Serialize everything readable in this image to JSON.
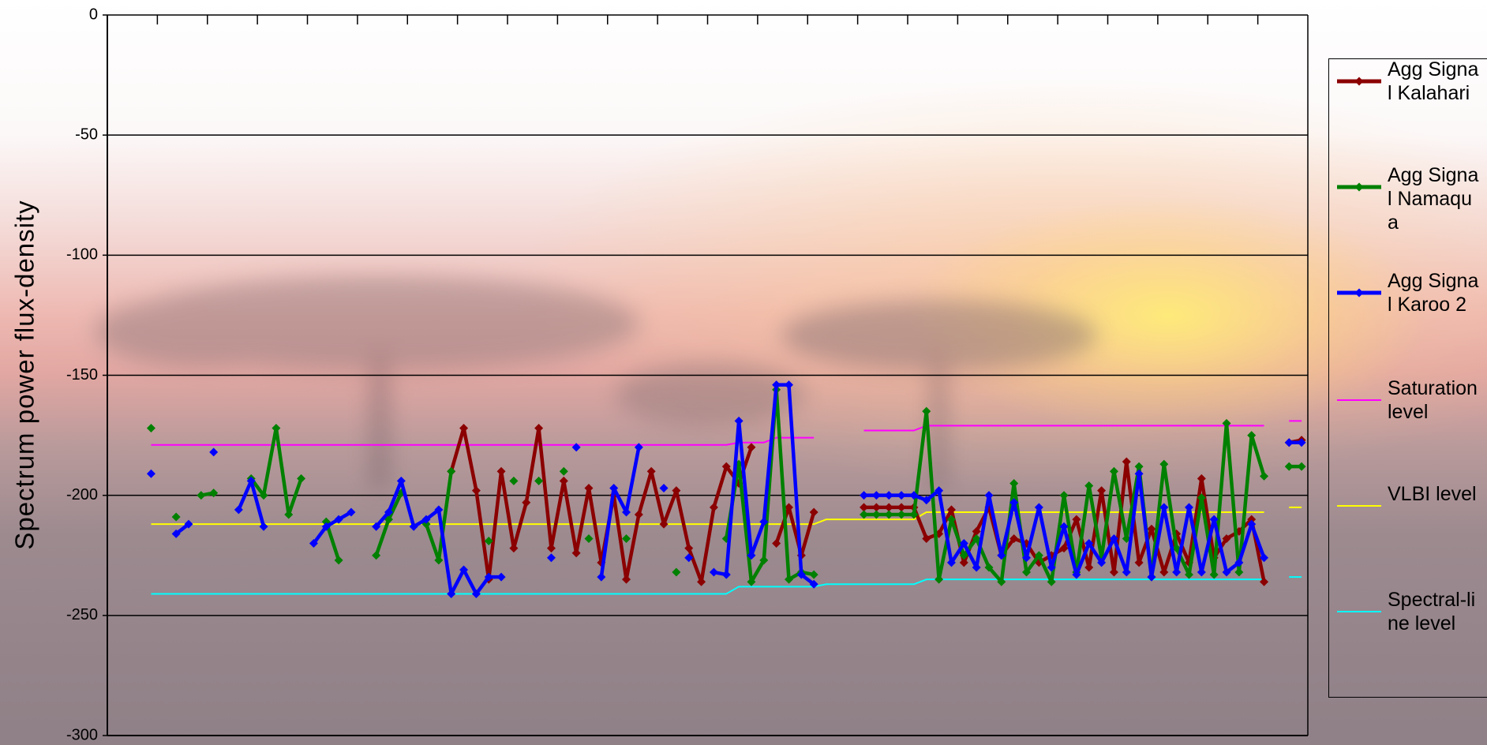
{
  "chart_data": {
    "type": "line",
    "y_label": "Spectrum power flux-density",
    "ylim": [
      -300,
      0
    ],
    "yticks": [
      0,
      -50,
      -100,
      -150,
      -200,
      -250,
      -300
    ],
    "grid": true,
    "legend": "right",
    "categories": [
      null,
      null,
      null,
      null,
      null,
      null,
      null,
      null,
      null,
      null,
      null,
      null,
      null,
      null,
      null,
      null,
      null,
      null,
      null,
      null,
      null,
      null,
      null,
      null,
      null,
      null,
      null,
      null,
      null,
      null,
      null,
      null,
      null,
      null,
      null,
      null,
      null,
      null,
      null,
      null,
      null,
      null,
      null,
      null,
      null,
      null,
      null,
      null,
      null,
      null,
      null,
      null,
      null,
      null,
      null,
      null,
      null,
      null,
      null,
      null,
      null,
      null,
      null,
      null,
      null,
      null,
      null,
      null,
      null,
      null,
      null,
      null,
      null,
      null,
      null,
      null,
      null,
      null,
      null,
      null,
      null,
      null,
      null,
      null,
      null,
      null,
      null,
      null,
      null,
      null,
      null,
      null,
      null,
      null,
      null,
      null
    ],
    "series": [
      {
        "name": "Agg Signal Kalahari",
        "color": "#8b0000",
        "marker": "diamond",
        "values": [
          null,
          null,
          null,
          null,
          null,
          null,
          null,
          null,
          null,
          null,
          null,
          null,
          null,
          null,
          null,
          null,
          null,
          null,
          null,
          null,
          null,
          null,
          null,
          null,
          null,
          null,
          null,
          -190,
          -172,
          -198,
          -235,
          -190,
          -222,
          -203,
          -172,
          -222,
          -194,
          -224,
          -197,
          -228,
          -200,
          -235,
          -208,
          -190,
          -212,
          -198,
          -222,
          -236,
          -205,
          -188,
          -195,
          -180,
          null,
          -220,
          -205,
          -225,
          -207,
          null,
          null,
          null,
          -205,
          -205,
          -205,
          -205,
          -205,
          -218,
          -216,
          -206,
          -228,
          -215,
          -205,
          -225,
          -218,
          -220,
          -228,
          -225,
          -222,
          -210,
          -230,
          -198,
          -232,
          -186,
          -228,
          -214,
          -232,
          -216,
          -228,
          -193,
          -226,
          -218,
          -215,
          -210,
          -236,
          null,
          -178,
          -177
        ]
      },
      {
        "name": "Agg Signal Namaqua",
        "color": "#008000",
        "marker": "diamond",
        "values": [
          null,
          null,
          null,
          -172,
          null,
          -209,
          null,
          -200,
          -199,
          null,
          null,
          -193,
          -200,
          -172,
          -208,
          -193,
          null,
          -211,
          -227,
          null,
          null,
          -225,
          -210,
          -199,
          null,
          -212,
          -227,
          -190,
          null,
          null,
          -219,
          null,
          -194,
          null,
          -194,
          null,
          -190,
          null,
          -218,
          null,
          null,
          -218,
          null,
          null,
          null,
          -232,
          null,
          null,
          null,
          -218,
          -187,
          -236,
          -227,
          -156,
          -235,
          -232,
          -233,
          null,
          null,
          null,
          -208,
          -208,
          -208,
          -208,
          -208,
          -165,
          -235,
          -210,
          -225,
          -218,
          -230,
          -236,
          -195,
          -232,
          -225,
          -236,
          -200,
          -232,
          -196,
          -226,
          -190,
          -218,
          -188,
          -234,
          -187,
          -222,
          -233,
          -201,
          -233,
          -170,
          -232,
          -175,
          -192,
          null,
          -188,
          -188
        ]
      },
      {
        "name": "Agg Signal Karoo 2",
        "color": "#0000ff",
        "marker": "diamond",
        "values": [
          null,
          null,
          null,
          -191,
          null,
          -216,
          -212,
          null,
          -182,
          null,
          -206,
          -194,
          -213,
          null,
          null,
          null,
          -220,
          -213,
          -210,
          -207,
          null,
          -213,
          -207,
          -194,
          -213,
          -210,
          -206,
          -241,
          -231,
          -241,
          -234,
          -234,
          null,
          null,
          null,
          -226,
          null,
          -180,
          null,
          -234,
          -197,
          -207,
          -180,
          null,
          -197,
          null,
          -226,
          null,
          -232,
          -233,
          -169,
          -225,
          -211,
          -154,
          -154,
          -233,
          -237,
          null,
          null,
          null,
          -200,
          -200,
          -200,
          -200,
          -200,
          -202,
          -198,
          -228,
          -220,
          -230,
          -200,
          -225,
          -203,
          -226,
          -205,
          -230,
          -213,
          -233,
          -220,
          -228,
          -218,
          -232,
          -191,
          -234,
          -205,
          -232,
          -205,
          -232,
          -210,
          -232,
          -228,
          -212,
          -226,
          null,
          -178,
          -178
        ]
      },
      {
        "name": "Saturation level",
        "color": "#ff00ff",
        "values": [
          null,
          null,
          null,
          -179,
          -179,
          -179,
          -179,
          -179,
          -179,
          -179,
          -179,
          -179,
          -179,
          -179,
          -179,
          -179,
          -179,
          -179,
          -179,
          -179,
          -179,
          -179,
          -179,
          -179,
          -179,
          -179,
          -179,
          -179,
          -179,
          -179,
          -179,
          -179,
          -179,
          -179,
          -179,
          -179,
          -179,
          -179,
          -179,
          -179,
          -179,
          -179,
          -179,
          -179,
          -179,
          -179,
          -179,
          -179,
          -179,
          -179,
          -178,
          -178,
          -178,
          -176,
          -176,
          -176,
          -176,
          null,
          null,
          null,
          -173,
          -173,
          -173,
          -173,
          -173,
          -171,
          -171,
          -171,
          -171,
          -171,
          -171,
          -171,
          -171,
          -171,
          -171,
          -171,
          -171,
          -171,
          -171,
          -171,
          -171,
          -171,
          -171,
          -171,
          -171,
          -171,
          -171,
          -171,
          -171,
          -171,
          -171,
          -171,
          -171,
          null,
          -169,
          -169
        ]
      },
      {
        "name": "VLBI level",
        "color": "#ffff00",
        "values": [
          null,
          null,
          null,
          -212,
          -212,
          -212,
          -212,
          -212,
          -212,
          -212,
          -212,
          -212,
          -212,
          -212,
          -212,
          -212,
          -212,
          -212,
          -212,
          -212,
          -212,
          -212,
          -212,
          -212,
          -212,
          -212,
          -212,
          -212,
          -212,
          -212,
          -212,
          -212,
          -212,
          -212,
          -212,
          -212,
          -212,
          -212,
          -212,
          -212,
          -212,
          -212,
          -212,
          -212,
          -212,
          -212,
          -212,
          -212,
          -212,
          -212,
          -212,
          -212,
          -212,
          -212,
          -212,
          -212,
          -212,
          -210,
          -210,
          -210,
          -210,
          -210,
          -210,
          -210,
          -210,
          -207,
          -207,
          -207,
          -207,
          -207,
          -207,
          -207,
          -207,
          -207,
          -207,
          -207,
          -207,
          -207,
          -207,
          -207,
          -207,
          -207,
          -207,
          -207,
          -207,
          -207,
          -207,
          -207,
          -207,
          -207,
          -207,
          -207,
          -207,
          null,
          -205,
          -205
        ]
      },
      {
        "name": "Spectral-line level",
        "color": "#00ffff",
        "values": [
          null,
          null,
          null,
          -241,
          -241,
          -241,
          -241,
          -241,
          -241,
          -241,
          -241,
          -241,
          -241,
          -241,
          -241,
          -241,
          -241,
          -241,
          -241,
          -241,
          -241,
          -241,
          -241,
          -241,
          -241,
          -241,
          -241,
          -241,
          -241,
          -241,
          -241,
          -241,
          -241,
          -241,
          -241,
          -241,
          -241,
          -241,
          -241,
          -241,
          -241,
          -241,
          -241,
          -241,
          -241,
          -241,
          -241,
          -241,
          -241,
          -241,
          -238,
          -238,
          -238,
          -238,
          -238,
          -238,
          -238,
          -237,
          -237,
          -237,
          -237,
          -237,
          -237,
          -237,
          -237,
          -235,
          -235,
          -235,
          -235,
          -235,
          -235,
          -235,
          -235,
          -235,
          -235,
          -235,
          -235,
          -235,
          -235,
          -235,
          -235,
          -235,
          -235,
          -235,
          -235,
          -235,
          -235,
          -235,
          -235,
          -235,
          -235,
          -235,
          -235,
          null,
          -234,
          -234
        ]
      }
    ]
  }
}
